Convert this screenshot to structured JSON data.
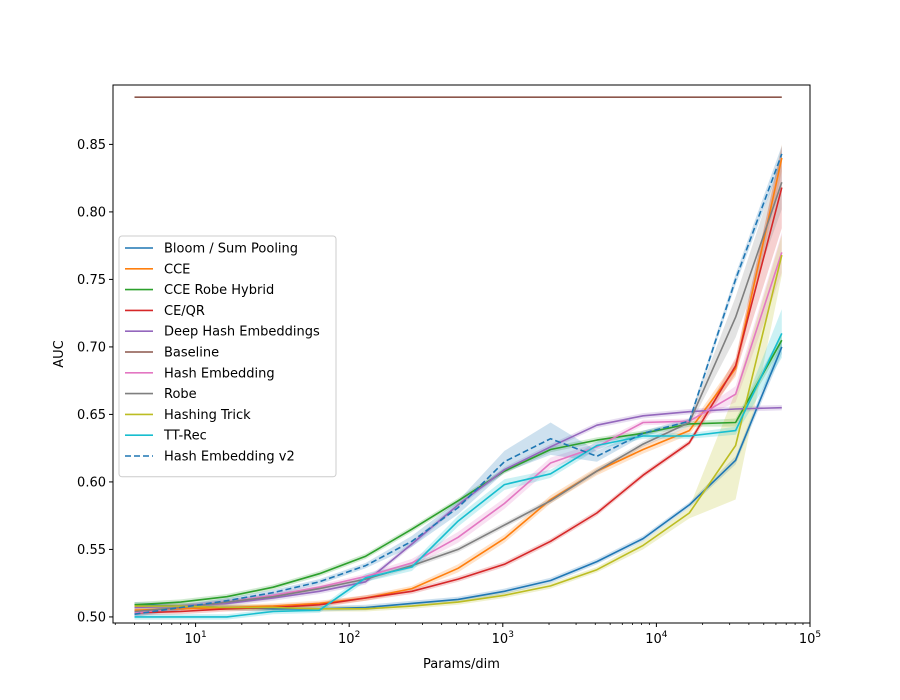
{
  "chart_data": {
    "type": "line",
    "title": "",
    "xlabel": "Params/dim",
    "ylabel": "AUC",
    "xscale": "log",
    "xlim": [
      2.9,
      100000
    ],
    "ylim": [
      0.4955,
      0.894
    ],
    "yticks": [
      0.5,
      0.55,
      0.6,
      0.65,
      0.7,
      0.75,
      0.8,
      0.85
    ],
    "ytick_labels": [
      "0.50",
      "0.55",
      "0.60",
      "0.65",
      "0.70",
      "0.75",
      "0.80",
      "0.85"
    ],
    "xticks": [
      {
        "base": "10",
        "exp": "1",
        "value": 10
      },
      {
        "base": "10",
        "exp": "2",
        "value": 100
      },
      {
        "base": "10",
        "exp": "3",
        "value": 1000
      },
      {
        "base": "10",
        "exp": "4",
        "value": 10000
      },
      {
        "base": "10",
        "exp": "5",
        "value": 100000
      }
    ],
    "legend_position": "center-left",
    "x": [
      4,
      8,
      16,
      32,
      64,
      128,
      256,
      512,
      1024,
      2048,
      4096,
      8192,
      16384,
      32768,
      65536
    ],
    "series": [
      {
        "name": "Bloom / Sum Pooling",
        "color": "#1f77b4",
        "dash": "solid",
        "values": [
          0.509,
          0.508,
          0.507,
          0.506,
          0.506,
          0.507,
          0.51,
          0.513,
          0.519,
          0.527,
          0.541,
          0.558,
          0.583,
          0.616,
          0.7
        ],
        "band": [
          0.002,
          0.002,
          0.002,
          0.002,
          0.002,
          0.002,
          0.002,
          0.002,
          0.002,
          0.002,
          0.002,
          0.002,
          0.002,
          0.003,
          0.005
        ]
      },
      {
        "name": "CCE",
        "color": "#ff7f0e",
        "dash": "solid",
        "values": [
          0.505,
          0.506,
          0.507,
          0.508,
          0.51,
          0.514,
          0.521,
          0.536,
          0.558,
          0.587,
          0.608,
          0.624,
          0.638,
          0.684,
          0.84
        ],
        "band": [
          0.002,
          0.002,
          0.002,
          0.002,
          0.002,
          0.002,
          0.002,
          0.003,
          0.003,
          0.003,
          0.003,
          0.003,
          0.003,
          0.006,
          0.01
        ]
      },
      {
        "name": "CCE Robe Hybrid",
        "color": "#2ca02c",
        "dash": "solid",
        "values": [
          0.509,
          0.511,
          0.515,
          0.522,
          0.532,
          0.545,
          0.565,
          0.586,
          0.608,
          0.624,
          0.631,
          0.636,
          0.643,
          0.644,
          0.705
        ],
        "band": [
          0.002,
          0.002,
          0.002,
          0.002,
          0.002,
          0.002,
          0.002,
          0.002,
          0.002,
          0.002,
          0.002,
          0.002,
          0.002,
          0.003,
          0.005
        ]
      },
      {
        "name": "CE/QR",
        "color": "#d62728",
        "dash": "solid",
        "values": [
          0.503,
          0.504,
          0.506,
          0.507,
          0.509,
          0.514,
          0.519,
          0.528,
          0.539,
          0.556,
          0.577,
          0.605,
          0.629,
          0.686,
          0.818
        ],
        "band": [
          0.002,
          0.002,
          0.002,
          0.002,
          0.002,
          0.002,
          0.002,
          0.002,
          0.002,
          0.002,
          0.002,
          0.002,
          0.002,
          0.006,
          0.03
        ]
      },
      {
        "name": "Deep Hash Embeddings",
        "color": "#9467bd",
        "dash": "solid",
        "values": [
          0.507,
          0.508,
          0.51,
          0.514,
          0.519,
          0.526,
          0.554,
          0.583,
          0.609,
          0.626,
          0.642,
          0.649,
          0.652,
          0.654,
          0.655
        ],
        "band": [
          0.002,
          0.002,
          0.002,
          0.002,
          0.002,
          0.002,
          0.002,
          0.002,
          0.002,
          0.002,
          0.002,
          0.002,
          0.002,
          0.002,
          0.002
        ]
      },
      {
        "name": "Baseline",
        "color": "#8c564b",
        "dash": "solid",
        "values": [
          0.885,
          0.885,
          0.885,
          0.885,
          0.885,
          0.885,
          0.885,
          0.885,
          0.885,
          0.885,
          0.885,
          0.885,
          0.885,
          0.885,
          0.885
        ],
        "band": [
          0,
          0,
          0,
          0,
          0,
          0,
          0,
          0,
          0,
          0,
          0,
          0,
          0,
          0,
          0
        ]
      },
      {
        "name": "Hash Embedding",
        "color": "#e377c2",
        "dash": "solid",
        "values": [
          0.503,
          0.507,
          0.511,
          0.516,
          0.522,
          0.53,
          0.54,
          0.559,
          0.584,
          0.614,
          0.626,
          0.644,
          0.645,
          0.665,
          0.77
        ],
        "band": [
          0.002,
          0.002,
          0.002,
          0.002,
          0.002,
          0.002,
          0.003,
          0.004,
          0.004,
          0.004,
          0.003,
          0.002,
          0.002,
          0.006,
          0.015
        ]
      },
      {
        "name": "Robe",
        "color": "#7f7f7f",
        "dash": "solid",
        "values": [
          0.504,
          0.507,
          0.511,
          0.515,
          0.521,
          0.528,
          0.538,
          0.55,
          0.568,
          0.586,
          0.608,
          0.628,
          0.644,
          0.722,
          0.822
        ],
        "band": [
          0.002,
          0.002,
          0.002,
          0.002,
          0.002,
          0.002,
          0.002,
          0.002,
          0.002,
          0.002,
          0.002,
          0.002,
          0.003,
          0.015,
          0.02
        ]
      },
      {
        "name": "Hashing Trick",
        "color": "#bcbd22",
        "dash": "solid",
        "values": [
          0.508,
          0.508,
          0.507,
          0.507,
          0.506,
          0.506,
          0.508,
          0.511,
          0.516,
          0.523,
          0.535,
          0.553,
          0.577,
          0.627,
          0.768
        ],
        "band": [
          0.002,
          0.002,
          0.002,
          0.002,
          0.002,
          0.002,
          0.002,
          0.002,
          0.002,
          0.002,
          0.002,
          0.003,
          0.004,
          0.04,
          0.015
        ]
      },
      {
        "name": "TT-Rec",
        "color": "#17becf",
        "dash": "solid",
        "values": [
          0.5,
          0.5,
          0.5,
          0.504,
          0.505,
          0.529,
          0.537,
          0.571,
          0.598,
          0.606,
          0.627,
          0.634,
          0.634,
          0.638,
          0.71
        ],
        "band": [
          0.002,
          0.002,
          0.002,
          0.002,
          0.002,
          0.003,
          0.003,
          0.004,
          0.004,
          0.003,
          0.003,
          0.002,
          0.002,
          0.003,
          0.018
        ]
      },
      {
        "name": "Hash Embedding v2",
        "color": "#1f77b4",
        "dash": "dashed",
        "values": [
          0.502,
          0.507,
          0.512,
          0.518,
          0.526,
          0.538,
          0.556,
          0.581,
          0.615,
          0.632,
          0.619,
          0.636,
          0.645,
          0.75,
          0.843
        ],
        "band": [
          0.002,
          0.002,
          0.002,
          0.002,
          0.002,
          0.002,
          0.004,
          0.005,
          0.008,
          0.012,
          0.004,
          0.002,
          0.002,
          0.004,
          0.006
        ]
      }
    ]
  }
}
